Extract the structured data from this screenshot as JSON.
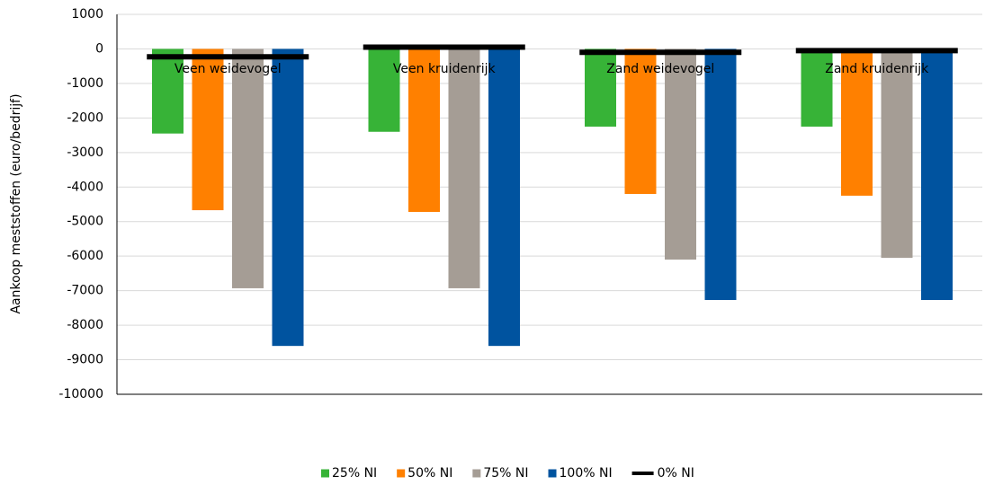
{
  "chart_data": {
    "type": "bar",
    "y_label": "Aankoop meststoffen (euro/bedrijf)",
    "categories": [
      "Veen weidevogel",
      "Veen kruidenrijk",
      "Zand weidevogel",
      "Zand kruidenrijk"
    ],
    "series": [
      {
        "name": "25% NI",
        "color": "#37b337",
        "values": [
          -2450,
          -2400,
          -2250,
          -2250
        ]
      },
      {
        "name": "50% NI",
        "color": "#ff8000",
        "values": [
          -4670,
          -4720,
          -4200,
          -4250
        ]
      },
      {
        "name": "75% NI",
        "color": "#a59d95",
        "values": [
          -6930,
          -6930,
          -6100,
          -6050
        ]
      },
      {
        "name": "100% NI",
        "color": "#00539f",
        "values": [
          -8600,
          -8600,
          -7270,
          -7270
        ]
      },
      {
        "name": "0% NI",
        "color": "#000000",
        "type": "line",
        "values": [
          -230,
          50,
          -100,
          -50
        ]
      }
    ],
    "ylim": [
      -10000,
      1000
    ],
    "yticks": [
      1000,
      0,
      -1000,
      -2000,
      -3000,
      -4000,
      -5000,
      -6000,
      -7000,
      -8000,
      -9000,
      -10000
    ],
    "grid": true,
    "legend": "bottom"
  }
}
